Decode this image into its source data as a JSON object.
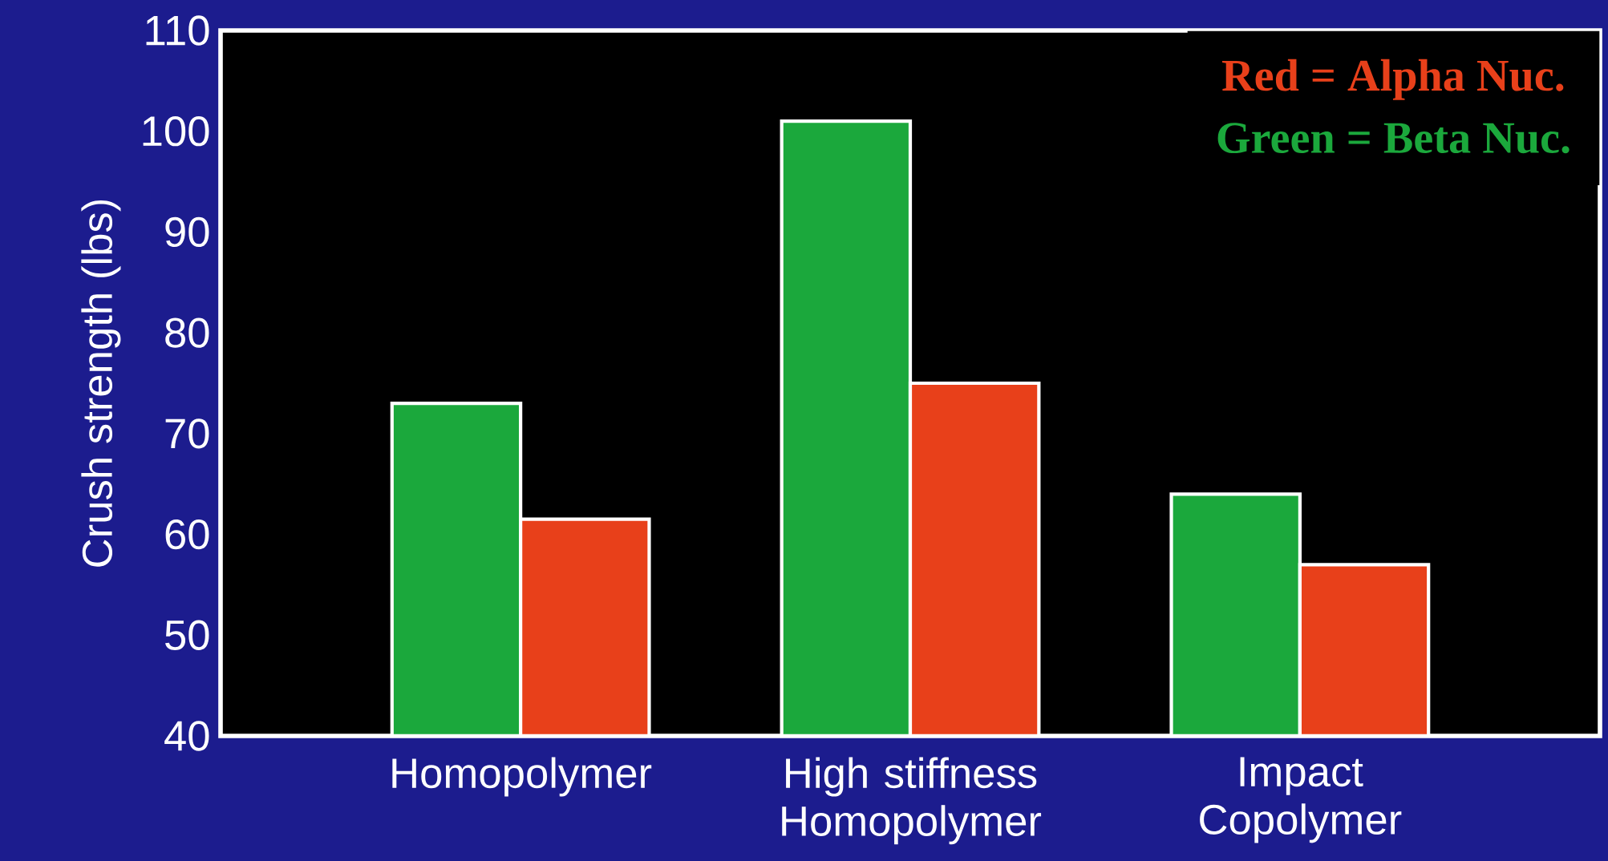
{
  "chart_data": {
    "type": "bar",
    "ylabel": "Crush strength (lbs)",
    "categories": [
      "Homopolymer",
      "High stiffness Homopolymer",
      "Impact Copolymer"
    ],
    "series": [
      {
        "name": "Green  =  Beta Nuc.",
        "color": "#1ba83c",
        "values": [
          73,
          101,
          64
        ]
      },
      {
        "name": "Red  =  Alpha Nuc.",
        "color": "#e8401a",
        "values": [
          61.5,
          75,
          57
        ]
      }
    ],
    "ylim": [
      40,
      110
    ],
    "yticks": [
      40,
      50,
      60,
      70,
      80,
      90,
      100,
      110
    ],
    "legend": "top right"
  }
}
